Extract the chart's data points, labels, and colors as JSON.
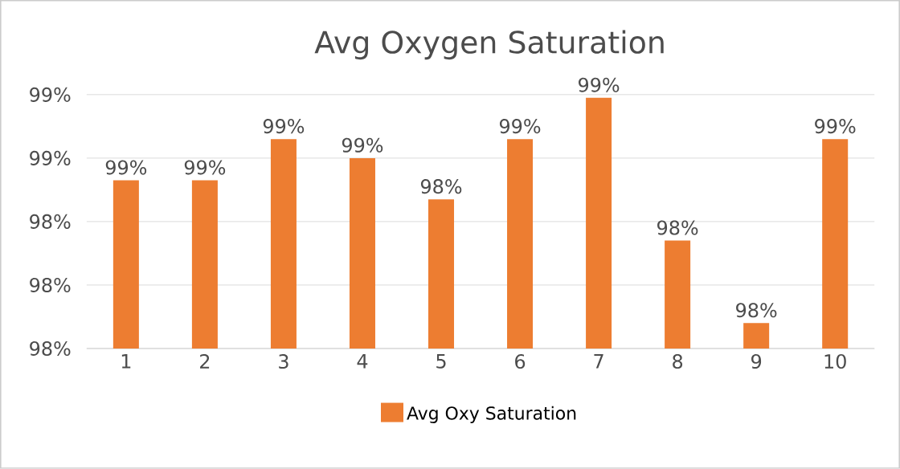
{
  "chart_data": {
    "type": "bar",
    "title": "Avg Oxygen Saturation",
    "categories": [
      "1",
      "2",
      "3",
      "4",
      "5",
      "6",
      "7",
      "8",
      "9",
      "10"
    ],
    "series": [
      {
        "name": "Avg Oxy Saturation",
        "color": "#ed7d31",
        "values": [
          98.53,
          98.53,
          98.66,
          98.6,
          98.47,
          98.66,
          98.79,
          98.34,
          98.08,
          98.66
        ],
        "value_labels": [
          "99%",
          "99%",
          "99%",
          "99%",
          "98%",
          "99%",
          "99%",
          "98%",
          "98%",
          "99%"
        ]
      }
    ],
    "ylim": [
      98.0,
      98.8
    ],
    "yticks": [
      {
        "value": 98.0,
        "label": "98%"
      },
      {
        "value": 98.2,
        "label": "98%"
      },
      {
        "value": 98.4,
        "label": "98%"
      },
      {
        "value": 98.6,
        "label": "99%"
      },
      {
        "value": 98.8,
        "label": "99%"
      }
    ],
    "grid": "y",
    "legend": "bottom"
  }
}
